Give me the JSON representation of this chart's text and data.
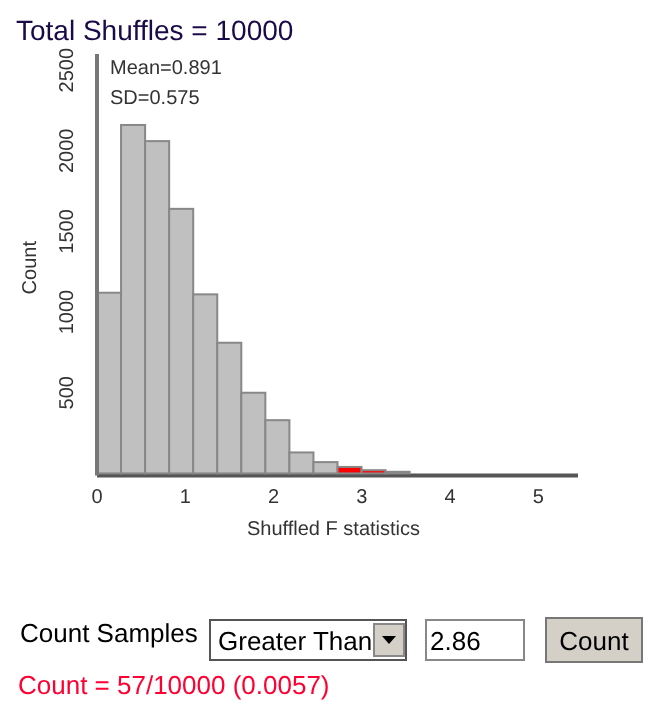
{
  "chart_data": {
    "type": "histogram",
    "title": "Total Shuffles = 10000",
    "xlabel": "Shuffled F statistics",
    "ylabel": "Count",
    "bins": [
      0,
      0.2725,
      0.545,
      0.8175,
      1.09,
      1.3625,
      1.635,
      1.9075,
      2.18,
      2.4525,
      2.725,
      2.9975,
      3.27,
      3.5425,
      3.815,
      4.0875,
      4.36,
      4.6325,
      4.905,
      5.1775,
      5.45
    ],
    "values": [
      1120,
      2160,
      2060,
      1640,
      1110,
      810,
      500,
      330,
      130,
      70,
      40,
      20,
      10,
      0,
      0,
      0,
      0,
      0,
      0,
      0
    ],
    "colors": [
      "#c0c0c0",
      "#c0c0c0",
      "#c0c0c0",
      "#c0c0c0",
      "#c0c0c0",
      "#c0c0c0",
      "#c0c0c0",
      "#c0c0c0",
      "#c0c0c0",
      "#c0c0c0",
      "#ff0000",
      "#ff0000",
      "#ff0000",
      "#c0c0c0",
      "#c0c0c0",
      "#c0c0c0",
      "#c0c0c0",
      "#c0c0c0",
      "#c0c0c0",
      "#c0c0c0"
    ],
    "xlim": [
      0,
      5.45
    ],
    "xticks": [
      0,
      1,
      2,
      3,
      4,
      5
    ],
    "ylim": [
      0,
      2600
    ],
    "yticks": [
      500,
      1000,
      1500,
      2000,
      2500
    ],
    "annotations": [
      "Mean=0.891",
      "SD=0.575",
      "Count Samples",
      "Greater Than",
      "2.86",
      "Count",
      "Count = 57/10000 (0.0057)"
    ]
  }
}
